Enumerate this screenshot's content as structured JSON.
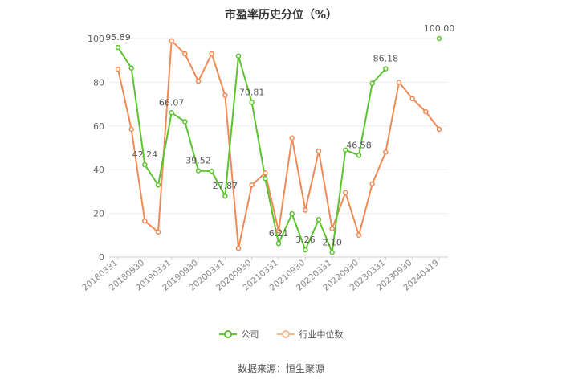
{
  "chart_data": {
    "type": "line",
    "title": "市盈率历史分位（%）",
    "source": "数据来源：恒生聚源",
    "ylim": [
      0,
      100
    ],
    "yticks": [
      0,
      20,
      40,
      60,
      80,
      100
    ],
    "grid": true,
    "legend_position": "bottom",
    "x_tick_labels": [
      "20180331",
      "20180930",
      "20190331",
      "20190930",
      "20200331",
      "20200930",
      "20210331",
      "20210930",
      "20220331",
      "20220930",
      "20230331",
      "20230930",
      "20240419"
    ],
    "x": [
      "20180331",
      "20180630",
      "20180930",
      "20181231",
      "20190331",
      "20190630",
      "20190930",
      "20191231",
      "20200331",
      "20200630",
      "20200930",
      "20201231",
      "20210331",
      "20210630",
      "20210930",
      "20211231",
      "20220331",
      "20220630",
      "20220930",
      "20221231",
      "20230331",
      "20230630",
      "20230930",
      "20231231",
      "20240419"
    ],
    "series": [
      {
        "name": "公司",
        "color": "#5ac32e",
        "values": [
          95.89,
          86.5,
          42.24,
          33.0,
          66.07,
          62.0,
          39.52,
          39.3,
          27.87,
          92.0,
          70.81,
          36.0,
          6.21,
          19.8,
          3.26,
          17.2,
          2.1,
          49.0,
          46.58,
          79.5,
          86.18,
          null,
          null,
          null,
          100.0
        ],
        "labels": [
          "95.89",
          null,
          "42.24",
          null,
          "66.07",
          null,
          "39.52",
          null,
          "27.87",
          null,
          "70.81",
          null,
          "6.21",
          null,
          "3.26",
          null,
          "2.10",
          null,
          "46.58",
          null,
          "86.18",
          null,
          null,
          null,
          "100.00"
        ]
      },
      {
        "name": "行业中位数",
        "color": "#f08a55",
        "values": [
          86.0,
          58.5,
          16.5,
          11.5,
          99.0,
          93.0,
          80.5,
          93.0,
          74.0,
          4.0,
          33.0,
          38.5,
          12.0,
          54.5,
          21.5,
          48.5,
          13.0,
          29.5,
          10.0,
          33.5,
          48.0,
          80.0,
          72.5,
          66.5,
          58.5
        ]
      }
    ]
  }
}
